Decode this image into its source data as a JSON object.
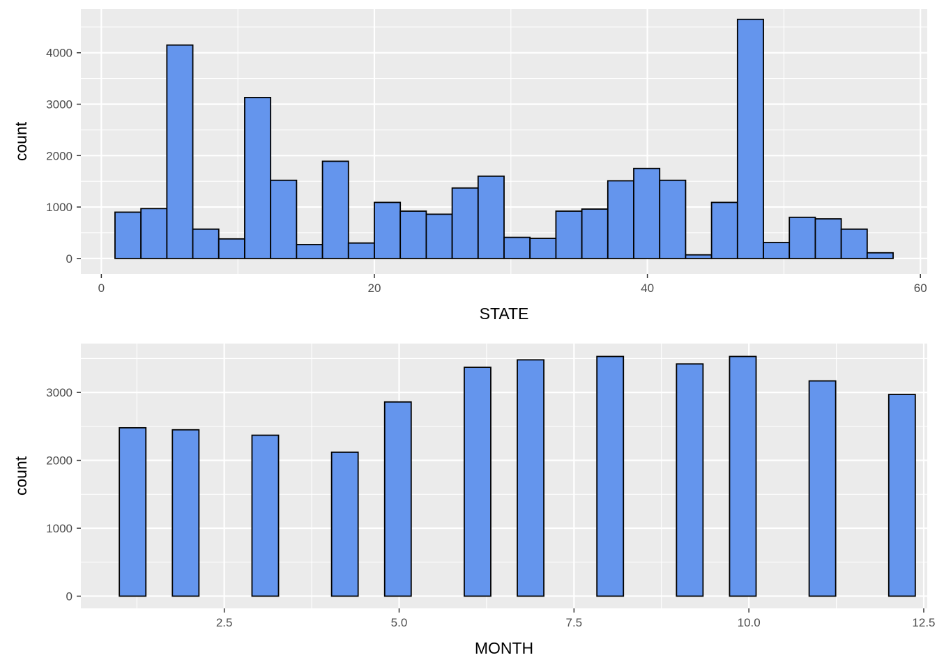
{
  "chart_data": [
    {
      "type": "bar",
      "chart": "histogram",
      "title": "",
      "xlabel": "STATE",
      "ylabel": "count",
      "xlim": [
        -1.5,
        60.5
      ],
      "ylim": [
        -300,
        4850
      ],
      "x_ticks": [
        0,
        20,
        40,
        60
      ],
      "x_tick_labels": [
        "0",
        "20",
        "40",
        "60"
      ],
      "y_ticks": [
        0,
        1000,
        2000,
        3000,
        4000
      ],
      "y_tick_labels": [
        "0",
        "1000",
        "2000",
        "3000",
        "4000"
      ],
      "bin_start": 1,
      "bin_width": 1.9,
      "values": [
        900,
        970,
        4150,
        570,
        380,
        3130,
        1520,
        270,
        1890,
        300,
        1090,
        920,
        860,
        1370,
        1600,
        410,
        390,
        920,
        960,
        1510,
        1750,
        1520,
        70,
        1090,
        4650,
        310,
        800,
        770,
        570,
        110
      ],
      "bar_color": "#6495ED",
      "bar_outline": "#000000",
      "panel_background": "#EBEBEB",
      "grid": true
    },
    {
      "type": "bar",
      "chart": "histogram",
      "title": "",
      "xlabel": "MONTH",
      "ylabel": "count",
      "xlim": [
        0.45,
        12.55
      ],
      "ylim": [
        -180,
        3720
      ],
      "x_ticks": [
        2.5,
        5.0,
        7.5,
        10.0,
        12.5
      ],
      "x_tick_labels": [
        "2.5",
        "5.0",
        "7.5",
        "10.0",
        "12.5"
      ],
      "y_ticks": [
        0,
        1000,
        2000,
        3000
      ],
      "y_tick_labels": [
        "0",
        "1000",
        "2000",
        "3000"
      ],
      "bin_start": 1,
      "bin_width": 0.3793,
      "values": [
        2480,
        0,
        2450,
        0,
        0,
        2370,
        0,
        0,
        2120,
        0,
        2860,
        0,
        0,
        3370,
        0,
        3480,
        0,
        0,
        3530,
        0,
        0,
        3420,
        0,
        3530,
        0,
        0,
        3170,
        0,
        0,
        2970
      ],
      "bar_color": "#6495ED",
      "bar_outline": "#000000",
      "panel_background": "#EBEBEB",
      "grid": true
    }
  ]
}
